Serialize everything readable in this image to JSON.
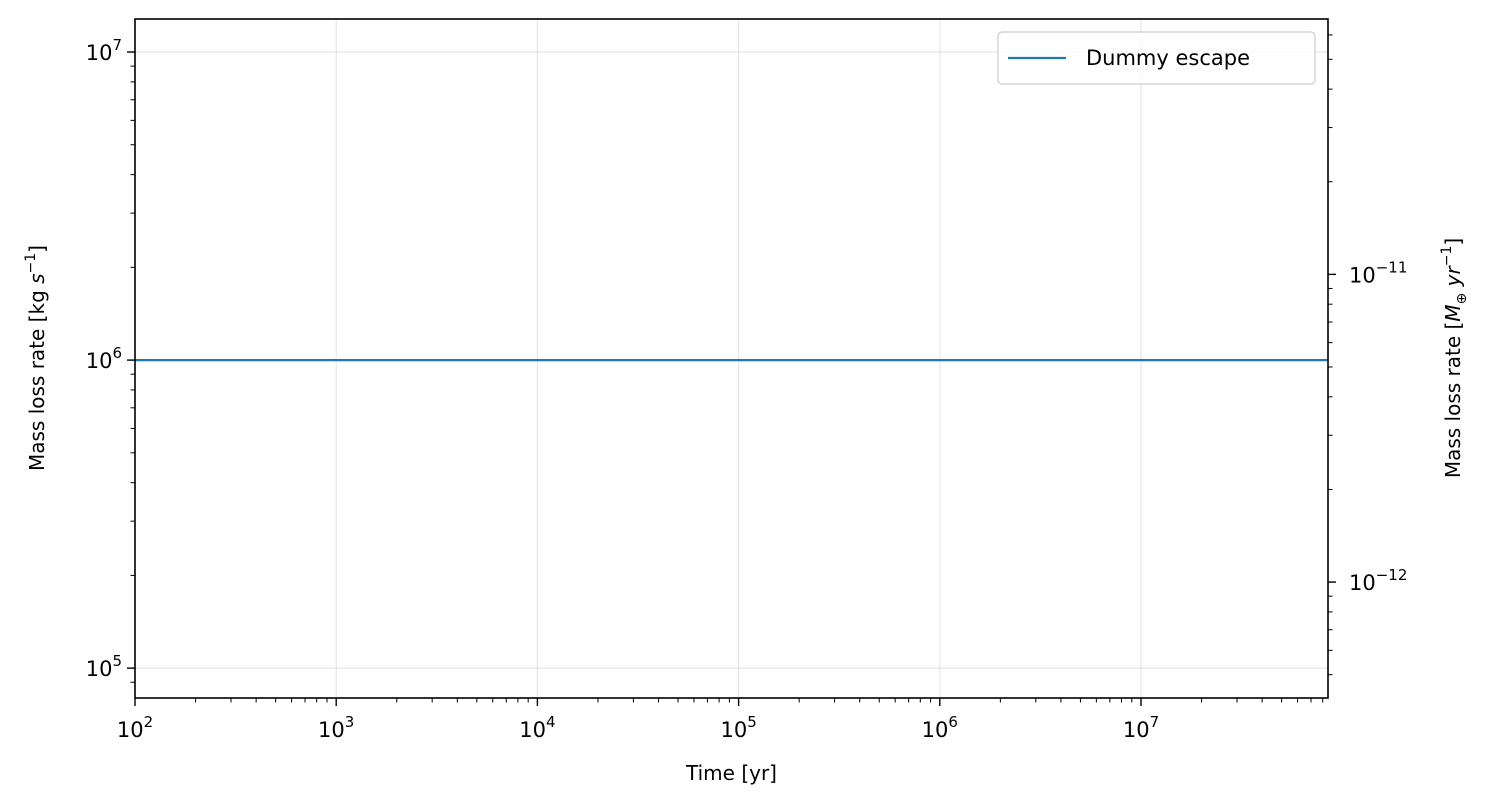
{
  "chart_data": {
    "type": "line",
    "x_scale": "log",
    "y_scale": "log",
    "xlabel": "Time [yr]",
    "ylabel": "Mass loss rate [kg s^-1]",
    "y2label": "Mass loss rate [M_⊕ yr^-1]",
    "xlim": [
      100,
      85000000
    ],
    "ylim": [
      80000,
      12800000
    ],
    "y2lim": [
      4.2e-13,
      6.76e-11
    ],
    "x_ticks": [
      {
        "base": "10",
        "exp": "2"
      },
      {
        "base": "10",
        "exp": "3"
      },
      {
        "base": "10",
        "exp": "4"
      },
      {
        "base": "10",
        "exp": "5"
      },
      {
        "base": "10",
        "exp": "6"
      },
      {
        "base": "10",
        "exp": "7"
      }
    ],
    "y_ticks": [
      {
        "base": "10",
        "exp": "5"
      },
      {
        "base": "10",
        "exp": "6"
      },
      {
        "base": "10",
        "exp": "7"
      }
    ],
    "y2_ticks": [
      {
        "base": "10",
        "exp": "−12"
      },
      {
        "base": "10",
        "exp": "−11"
      }
    ],
    "grid": true,
    "legend_position": "top-right",
    "series": [
      {
        "name": "Dummy escape",
        "color": "#1f77b4",
        "x": [
          100,
          85000000
        ],
        "y": [
          1000000,
          1000000
        ]
      }
    ]
  }
}
